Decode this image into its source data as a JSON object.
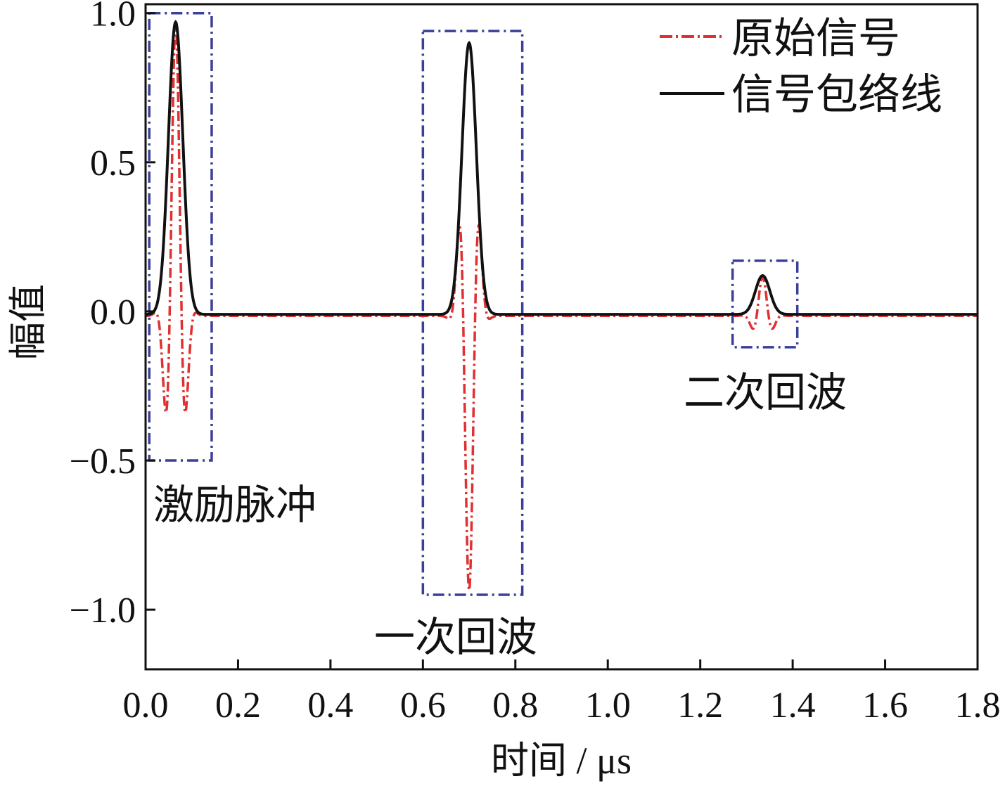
{
  "chart_data": {
    "type": "line",
    "xlabel": "时间 / μs",
    "ylabel": "幅值",
    "xlim": [
      0.0,
      1.8
    ],
    "ylim": [
      -1.2,
      1.03
    ],
    "x_ticks": [
      "0.0",
      "0.2",
      "0.4",
      "0.6",
      "0.8",
      "1.0",
      "1.2",
      "1.4",
      "1.6",
      "1.8"
    ],
    "y_ticks": [
      "1.0",
      "0.5",
      "0.0",
      "−0.5",
      "−1.0"
    ],
    "grid": false,
    "legend_position": "top-right",
    "series": [
      {
        "name": "原始信号",
        "color": "#e03030",
        "style": "dash-dot",
        "pulses": [
          {
            "center": 0.065,
            "amplitude": 0.98,
            "carrier_period": 0.052,
            "phase": "cos"
          },
          {
            "center": 0.7,
            "amplitude": -0.92,
            "carrier_period": 0.052,
            "phase": "cos"
          },
          {
            "center": 1.335,
            "amplitude": 0.13,
            "carrier_period": 0.052,
            "phase": "cos"
          }
        ]
      },
      {
        "name": "信号包络线",
        "color": "#111111",
        "style": "solid",
        "peaks": [
          {
            "x": 0.065,
            "y": 0.98
          },
          {
            "x": 0.7,
            "y": 0.91
          },
          {
            "x": 1.335,
            "y": 0.13
          }
        ]
      }
    ],
    "annotations": [
      {
        "text": "激励脉冲",
        "box_x": [
          0.008,
          0.143
        ],
        "box_y": [
          -0.5,
          1.0
        ]
      },
      {
        "text": "一次回波",
        "box_x": [
          0.6,
          0.815
        ],
        "box_y": [
          -0.95,
          0.94
        ]
      },
      {
        "text": "二次回波",
        "box_x": [
          1.27,
          1.41
        ],
        "box_y": [
          -0.12,
          0.17
        ]
      }
    ],
    "box_color": "#3a3f9a"
  }
}
